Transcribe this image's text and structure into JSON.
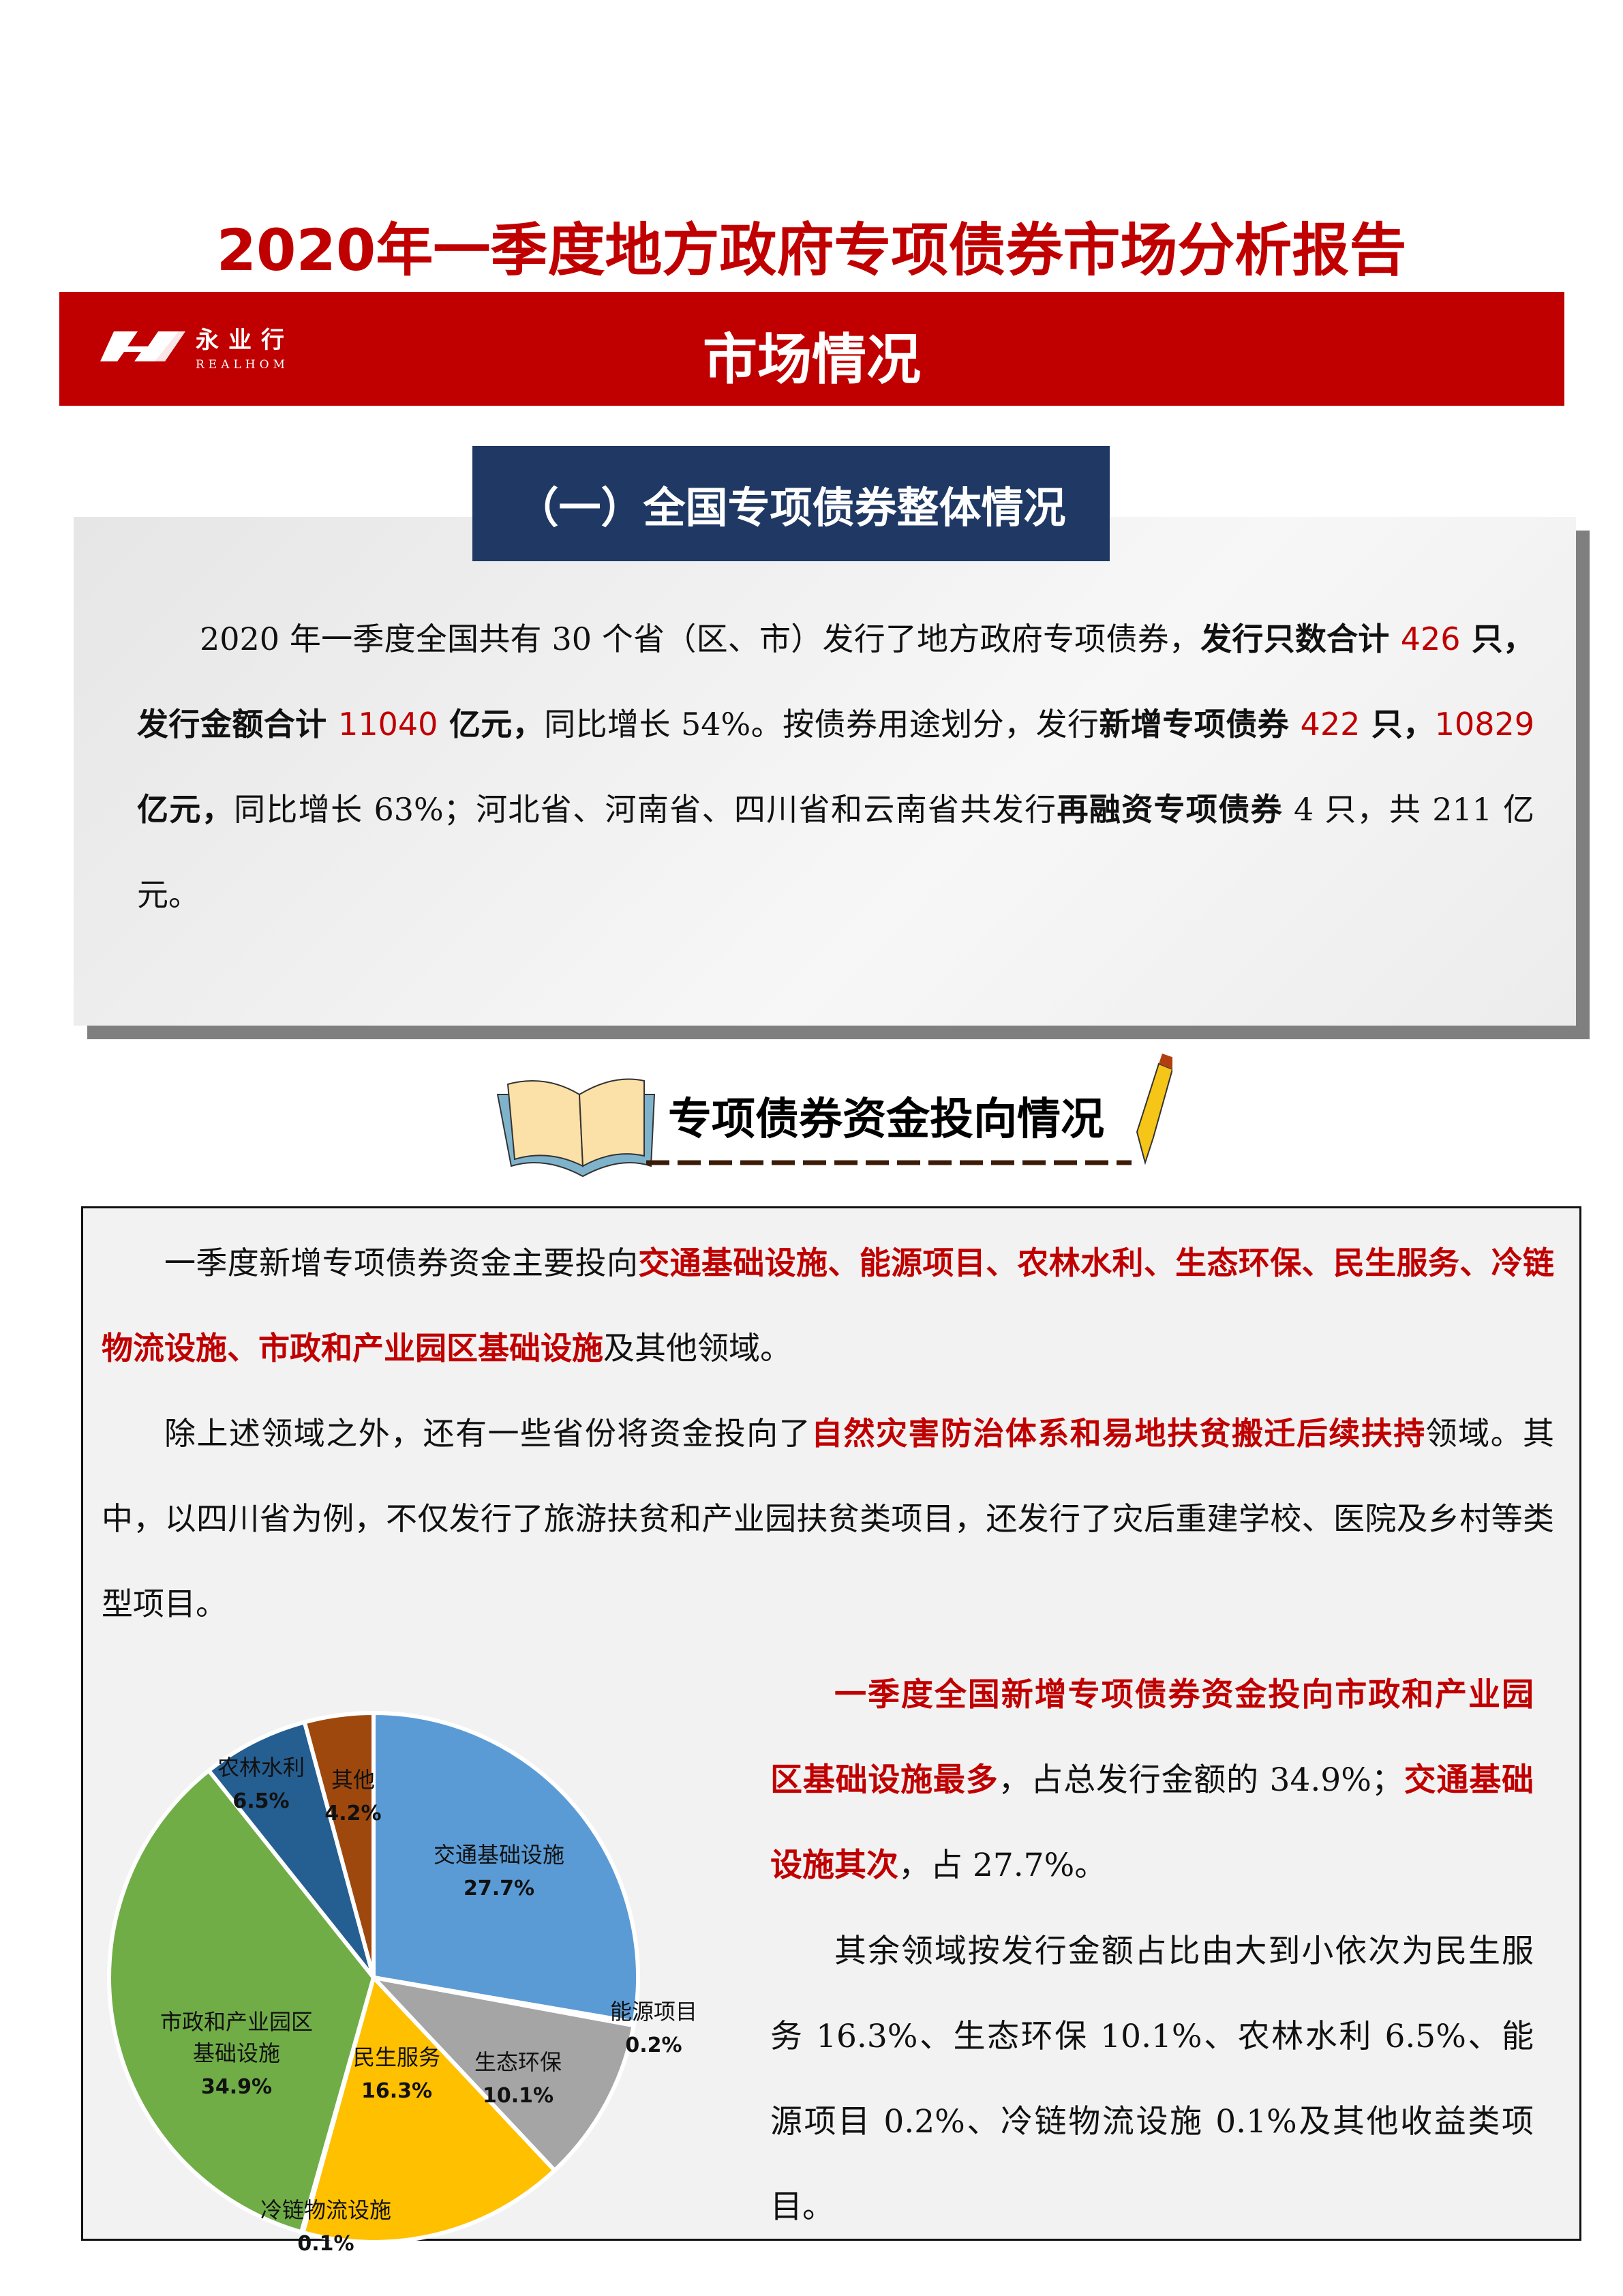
{
  "title": "2020年一季度地方政府专项债券市场分析报告",
  "banner": {
    "title": "市场情况",
    "logo_text": "永业行",
    "logo_sub": "REALHOM",
    "color": "#C00000"
  },
  "section1": {
    "heading": "（一）全国专项债券整体情况",
    "paragraph": [
      {
        "t": "2020 年一季度全国共有 30 个省（区、市）发行了地方政府专项债券，",
        "s": "n"
      },
      {
        "t": "发行只数合计 ",
        "s": "b"
      },
      {
        "t": "426",
        "s": "rn"
      },
      {
        "t": " 只，发行金额合计 ",
        "s": "b"
      },
      {
        "t": "11040",
        "s": "rn"
      },
      {
        "t": " 亿元，",
        "s": "b"
      },
      {
        "t": "同比增长 54%。按债券用途划分，发行",
        "s": "n"
      },
      {
        "t": "新增专项债券 ",
        "s": "b"
      },
      {
        "t": "422",
        "s": "rn"
      },
      {
        "t": " 只，",
        "s": "b"
      },
      {
        "t": "10829",
        "s": "rn"
      },
      {
        "t": " 亿元，",
        "s": "b"
      },
      {
        "t": "同比增长 63%；河北省、河南省、四川省和云南省共发行",
        "s": "n"
      },
      {
        "t": "再融资专项债券",
        "s": "b"
      },
      {
        "t": " 4 只，共 211 亿元。",
        "s": "n"
      }
    ]
  },
  "section2": {
    "heading": "专项债券资金投向情况",
    "paragraphs": [
      [
        {
          "t": "一季度新增专项债券资金主要投向",
          "s": "n"
        },
        {
          "t": "交通基础设施、能源项目、农林水利、生态环保、民生服务、冷链物流设施、市政和产业园区基础设施",
          "s": "r"
        },
        {
          "t": "及其他领域。",
          "s": "n"
        }
      ],
      [
        {
          "t": "除上述领域之外，还有一些省份将资金投向了",
          "s": "n"
        },
        {
          "t": "自然灾害防治体系和易地扶贫搬迁后续扶持",
          "s": "r"
        },
        {
          "t": "领域。其中，以四川省为例，不仅发行了旅游扶贫和产业园扶贫类项目，还发行了灾后重建学校、医院及乡村等类型项目。",
          "s": "n"
        }
      ],
      [
        {
          "t": "一季度全国新增专项债券资金投向市政和产业园区基础设施最多",
          "s": "r"
        },
        {
          "t": "，占总发行金额的 34.9%；",
          "s": "n"
        },
        {
          "t": "交通基础设施其次",
          "s": "r"
        },
        {
          "t": "，占 27.7%。",
          "s": "n"
        }
      ],
      [
        {
          "t": "其余领域按发行金额占比由大到小依次为民生服务 16.3%、生态环保 10.1%、农林水利 6.5%、能源项目 0.2%、冷链物流设施 0.1%及其他收益类项目。",
          "s": "n"
        }
      ]
    ]
  },
  "chart_data": {
    "type": "pie",
    "title": "",
    "start": "top, clockwise",
    "slices": [
      {
        "label": "交通基础设施",
        "value": 27.7,
        "display": "27.7%",
        "color": "#5B9BD5"
      },
      {
        "label": "能源项目",
        "value": 0.2,
        "display": "0.2%",
        "color": "#ED7D31"
      },
      {
        "label": "生态环保",
        "value": 10.1,
        "display": "10.1%",
        "color": "#A5A5A5"
      },
      {
        "label": "民生服务",
        "value": 16.3,
        "display": "16.3%",
        "color": "#FFC000"
      },
      {
        "label": "冷链物流设施",
        "value": 0.1,
        "display": "0.1%",
        "color": "#4472C4"
      },
      {
        "label": "市政和产业园区基础设施",
        "label_lines": [
          "市政和产业园区",
          "基础设施"
        ],
        "value": 34.9,
        "display": "34.9%",
        "color": "#70AD47"
      },
      {
        "label": "农林水利",
        "value": 6.5,
        "display": "6.5%",
        "color": "#255E91"
      },
      {
        "label": "其他",
        "value": 4.2,
        "display": "4.2%",
        "color": "#9E480E"
      }
    ]
  }
}
